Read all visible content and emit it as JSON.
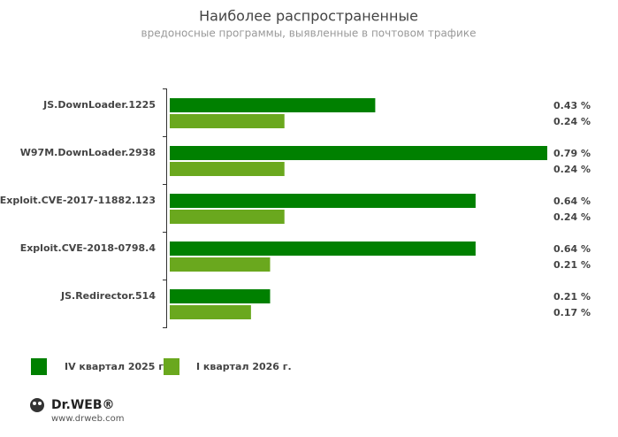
{
  "chart_data": {
    "type": "hbar",
    "title": "Наиболее распространенные",
    "subtitle": "вредоносные программы, выявленные в почтовом трафике",
    "categories": [
      "JS.DownLoader.1225",
      "W97M.DownLoader.2938",
      "Exploit.CVE-2017-11882.123",
      "Exploit.CVE-2018-0798.4",
      "JS.Redirector.514"
    ],
    "series": [
      {
        "name": "IV квартал 2025 г.",
        "color": "#008000",
        "values": [
          0.43,
          0.79,
          0.64,
          0.64,
          0.21
        ],
        "value_labels": [
          "0.43 %",
          "0.79 %",
          "0.64 %",
          "0.64 %",
          "0.21 %"
        ]
      },
      {
        "name": "I квартал 2026 г.",
        "color": "#6aa81e",
        "values": [
          0.24,
          0.24,
          0.24,
          0.21,
          0.17
        ],
        "value_labels": [
          "0.24 %",
          "0.24 %",
          "0.24 %",
          "0.21 %",
          "0.17 %"
        ]
      }
    ]
  },
  "footer": {
    "logo": "Dr.WEB®",
    "url": "www.drweb.com"
  }
}
